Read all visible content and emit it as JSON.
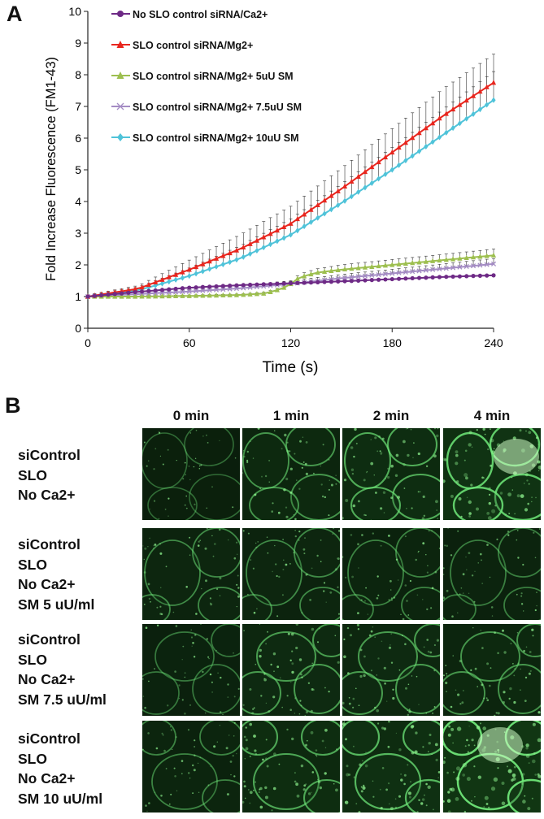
{
  "panel_a": {
    "letter": "A"
  },
  "panel_b": {
    "letter": "B",
    "columns": [
      "0 min",
      "1 min",
      "2 min",
      "4 min"
    ],
    "rows": [
      {
        "lines": [
          "siControl",
          "SLO",
          "No Ca2+"
        ]
      },
      {
        "lines": [
          "siControl",
          "SLO",
          "No Ca2+",
          "SM 5 uU/ml"
        ]
      },
      {
        "lines": [
          "siControl",
          "SLO",
          "No Ca2+",
          "SM 7.5 uU/ml"
        ]
      },
      {
        "lines": [
          "siControl",
          "SLO",
          "No Ca2+",
          "SM 10 uU/ml"
        ]
      }
    ]
  },
  "chart_data": {
    "type": "line",
    "xlabel": "Time (s)",
    "ylabel": "Fold Increase Fluorescence (FM1-43)",
    "xlim": [
      0,
      240
    ],
    "ylim": [
      0,
      10
    ],
    "x_ticks": [
      0,
      60,
      120,
      180,
      240
    ],
    "y_ticks": [
      0,
      1,
      2,
      3,
      4,
      5,
      6,
      7,
      8,
      9,
      10
    ],
    "grid": false,
    "legend_position": "top-left",
    "error_bars": "upper",
    "series": [
      {
        "name": "No SLO control siRNA/Ca2+",
        "color": "#6e2a86",
        "marker": "circle",
        "x": [
          0,
          30,
          60,
          90,
          120,
          150,
          180,
          210,
          240
        ],
        "y": [
          1.0,
          1.15,
          1.28,
          1.36,
          1.42,
          1.48,
          1.55,
          1.62,
          1.67
        ],
        "err": [
          0.03,
          0.04,
          0.05,
          0.05,
          0.05,
          0.05,
          0.05,
          0.05,
          0.05
        ]
      },
      {
        "name": "SLO control siRNA/Mg2+",
        "color": "#e8261e",
        "marker": "triangle",
        "x": [
          0,
          30,
          60,
          90,
          120,
          150,
          180,
          210,
          240
        ],
        "y": [
          1.0,
          1.25,
          1.85,
          2.5,
          3.3,
          4.4,
          5.55,
          6.7,
          7.75
        ],
        "err": [
          0.05,
          0.1,
          0.3,
          0.45,
          0.55,
          0.65,
          0.75,
          0.85,
          0.9
        ]
      },
      {
        "name": "SLO control siRNA/Mg2+ 5uU SM",
        "color": "#9dbf4f",
        "marker": "triangle",
        "x": [
          0,
          30,
          60,
          90,
          105,
          115,
          120,
          125,
          135,
          150,
          180,
          210,
          240
        ],
        "y": [
          1.0,
          1.0,
          1.02,
          1.05,
          1.1,
          1.25,
          1.4,
          1.6,
          1.75,
          1.85,
          2.0,
          2.15,
          2.3
        ],
        "err": [
          0.02,
          0.02,
          0.03,
          0.03,
          0.04,
          0.05,
          0.08,
          0.1,
          0.12,
          0.15,
          0.17,
          0.18,
          0.2
        ]
      },
      {
        "name": "SLO control siRNA/Mg2+ 7.5uU SM",
        "color": "#a48cc4",
        "marker": "x",
        "x": [
          0,
          30,
          60,
          90,
          120,
          150,
          180,
          210,
          240
        ],
        "y": [
          1.0,
          1.08,
          1.16,
          1.26,
          1.4,
          1.58,
          1.73,
          1.88,
          2.03
        ],
        "err": [
          0.03,
          0.05,
          0.07,
          0.09,
          0.1,
          0.12,
          0.13,
          0.15,
          0.17
        ]
      },
      {
        "name": "SLO control siRNA/Mg2+ 10uU SM",
        "color": "#4fc3d9",
        "marker": "diamond",
        "x": [
          0,
          30,
          60,
          90,
          120,
          150,
          180,
          210,
          240
        ],
        "y": [
          1.0,
          1.2,
          1.65,
          2.2,
          2.95,
          3.95,
          5.0,
          6.1,
          7.2
        ],
        "err": [
          0.05,
          0.1,
          0.25,
          0.4,
          0.5,
          0.6,
          0.7,
          0.8,
          0.9
        ]
      }
    ]
  }
}
